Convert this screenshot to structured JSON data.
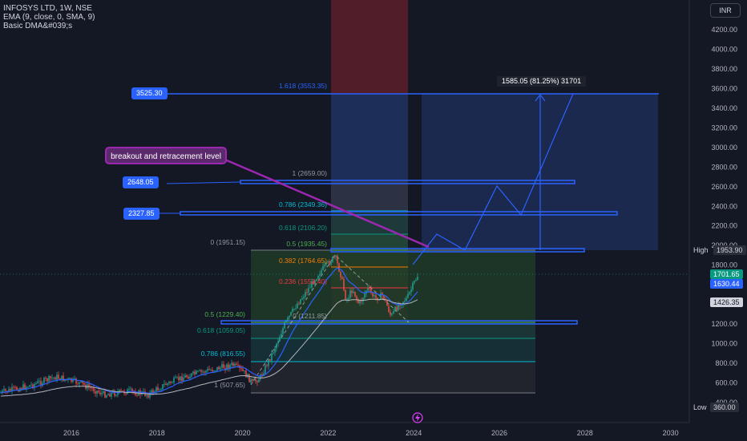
{
  "legend": {
    "symbol": "INFOSYS LTD, 1W, NSE",
    "ema": "EMA (9, close, 0, SMA, 9)",
    "dma": "Basic DMA&#039;s"
  },
  "currency_button": "INR",
  "y_axis_ticks": [
    "4200.00",
    "4000.00",
    "3800.00",
    "3600.00",
    "3400.00",
    "3200.00",
    "3000.00",
    "2800.00",
    "2600.00",
    "2400.00",
    "2200.00",
    "2000.00",
    "1800.00",
    "1600.00",
    "1400.00",
    "1200.00",
    "1000.00",
    "800.00",
    "600.00",
    "400.00"
  ],
  "x_axis_ticks": [
    "2016",
    "2018",
    "2020",
    "2022",
    "2024",
    "2026",
    "2028",
    "2030"
  ],
  "price_tags": {
    "high_label": "High",
    "high_value": "1953.90",
    "last": "1701.65",
    "ema": "1630.44",
    "dma": "1426.35",
    "low_label": "Low",
    "low_value": "360.00"
  },
  "fib_left_labels": [
    "0 (1951.15)",
    "0.5 (1229.40)",
    "0.618 (1059.05)",
    "0.786 (816.55)",
    "1 (507.65)"
  ],
  "fib_right_labels": [
    "1.618 (3553.35)",
    "1 (2659.00)",
    "0.786 (2349.36)",
    "0.618 (2106.20)",
    "0.5 (1935.45)",
    "0.382 (1764.65)",
    "0.236 (1553.40)",
    "0 (1211.85)"
  ],
  "callout": "breakout and retracement level",
  "left_tags": [
    "3525.30",
    "2648.05",
    "2327.85"
  ],
  "measure_label": "1585.05 (81.25%) 31701",
  "colors": {
    "background": "#141824",
    "up": "#26a69a",
    "down": "#ef5350",
    "accent": "#2962ff",
    "callout": "#9c27b0"
  },
  "icons": [
    "lightning-icon"
  ]
}
